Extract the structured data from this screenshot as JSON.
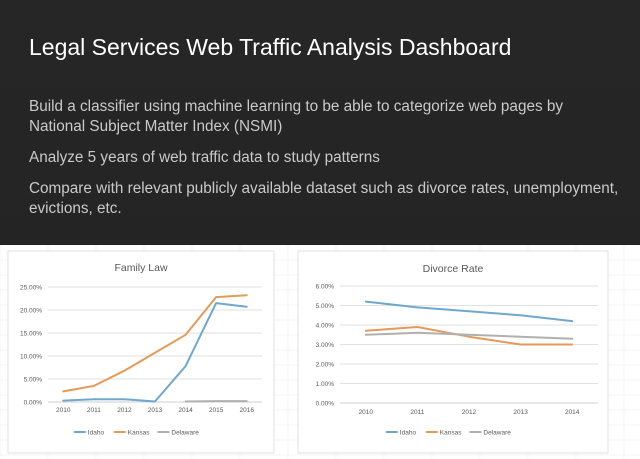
{
  "slide": {
    "title": "Legal Services Web Traffic Analysis Dashboard",
    "bullets": [
      "Build a classifier using machine learning to be able to categorize web pages by National Subject Matter Index (NSMI)",
      "Analyze 5 years of web traffic data to study patterns",
      "Compare with relevant publicly available dataset such as divorce rates, unemployment, evictions, etc."
    ]
  },
  "colors": {
    "idaho": "#6fa8cc",
    "kansas": "#e59a58",
    "delaware": "#b0b0b0"
  },
  "chart_data": [
    {
      "type": "line",
      "title": "Family Law",
      "x": [
        "2010",
        "2011",
        "2012",
        "2013",
        "2014",
        "2015",
        "2016"
      ],
      "yticks": [
        "0.00%",
        "5.00%",
        "10.00%",
        "15.00%",
        "20.00%",
        "25.00%"
      ],
      "ylim": [
        0,
        25
      ],
      "grid": true,
      "legend": "bottom",
      "series": [
        {
          "name": "Idaho",
          "color": "#6fa8cc",
          "values": [
            0.3,
            0.6,
            0.6,
            0.1,
            7.8,
            21.5,
            20.7
          ]
        },
        {
          "name": "Kansas",
          "color": "#e59a58",
          "values": [
            2.3,
            3.5,
            6.8,
            10.7,
            14.6,
            22.8,
            23.2
          ]
        },
        {
          "name": "Delaware",
          "color": "#b0b0b0",
          "values": [
            null,
            null,
            null,
            null,
            0.1,
            0.2,
            0.2
          ]
        }
      ]
    },
    {
      "type": "line",
      "title": "Divorce Rate",
      "x": [
        "2010",
        "2011",
        "2012",
        "2013",
        "2014"
      ],
      "yticks": [
        "0.00%",
        "1.00%",
        "2.00%",
        "3.00%",
        "4.00%",
        "5.00%",
        "6.00%"
      ],
      "ylim": [
        0,
        6
      ],
      "grid": true,
      "legend": "bottom",
      "series": [
        {
          "name": "Idaho",
          "color": "#6fa8cc",
          "values": [
            5.2,
            4.9,
            4.7,
            4.5,
            4.2
          ]
        },
        {
          "name": "Kansas",
          "color": "#e59a58",
          "values": [
            3.7,
            3.9,
            3.4,
            3.0,
            3.0
          ]
        },
        {
          "name": "Delaware",
          "color": "#b0b0b0",
          "values": [
            3.5,
            3.6,
            3.5,
            3.4,
            3.3
          ]
        }
      ]
    }
  ]
}
